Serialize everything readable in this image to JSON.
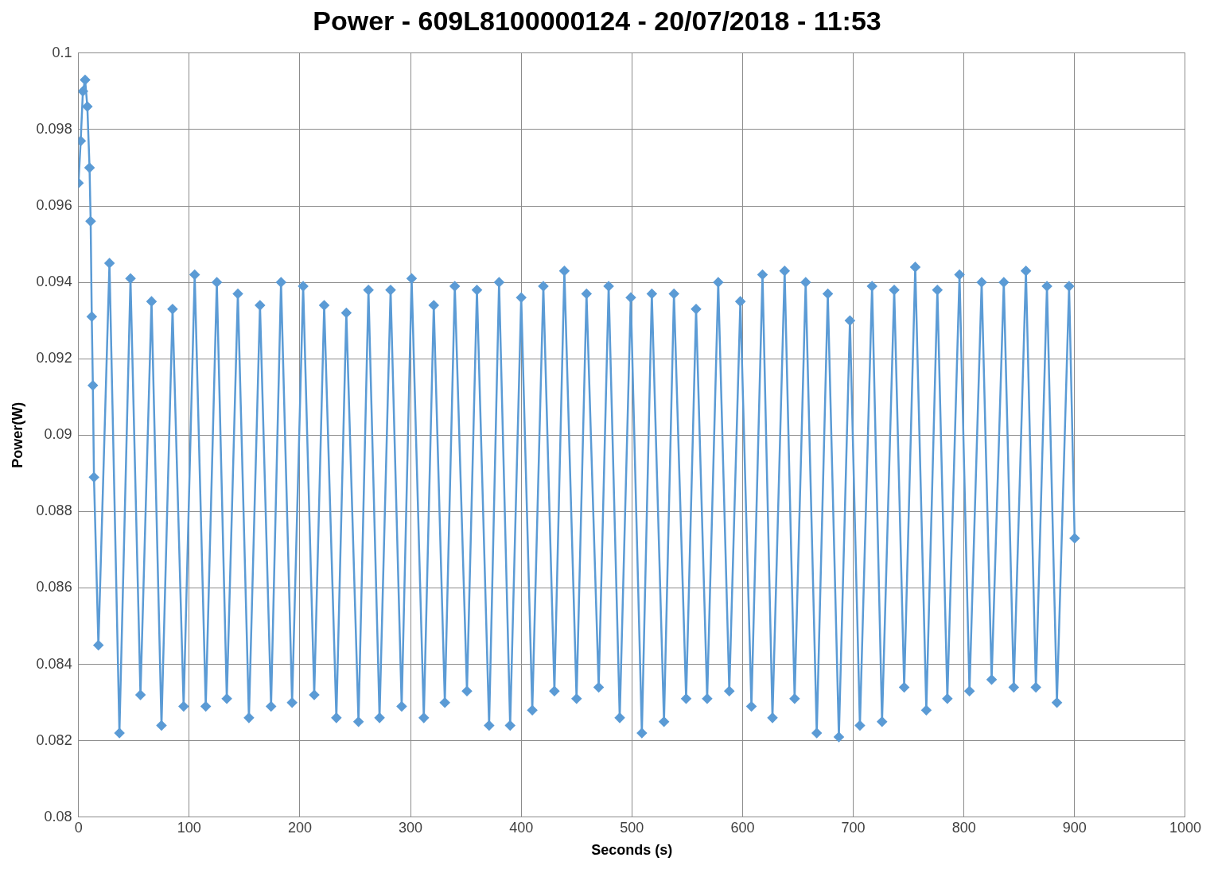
{
  "chart_data": {
    "type": "line",
    "title": "Power - 609L8100000124 - 20/07/2018 - 11:53",
    "xlabel": "Seconds (s)",
    "ylabel": "Power(W)",
    "x": [
      0,
      2,
      4,
      6,
      8,
      10,
      11,
      12,
      13,
      14,
      18,
      28,
      37,
      47,
      56,
      66,
      75,
      85,
      95,
      105,
      115,
      125,
      134,
      144,
      154,
      164,
      174,
      183,
      193,
      203,
      213,
      222,
      233,
      242,
      253,
      262,
      272,
      282,
      292,
      301,
      312,
      321,
      331,
      340,
      351,
      360,
      371,
      380,
      390,
      400,
      410,
      420,
      430,
      439,
      450,
      459,
      470,
      479,
      489,
      499,
      509,
      518,
      529,
      538,
      549,
      558,
      568,
      578,
      588,
      598,
      608,
      618,
      627,
      638,
      647,
      657,
      667,
      677,
      687,
      697,
      706,
      717,
      726,
      737,
      746,
      756,
      766,
      776,
      785,
      796,
      805,
      816,
      825,
      836,
      845,
      856,
      865,
      875,
      884,
      895,
      900
    ],
    "series": [
      {
        "color": "#5b9bd5",
        "values": [
          0.0966,
          0.0977,
          0.099,
          0.0993,
          0.0986,
          0.097,
          0.0956,
          0.0931,
          0.0913,
          0.0889,
          0.0845,
          0.0945,
          0.0822,
          0.0941,
          0.0832,
          0.0935,
          0.0824,
          0.0933,
          0.0829,
          0.0942,
          0.0829,
          0.094,
          0.0831,
          0.0937,
          0.0826,
          0.0934,
          0.0829,
          0.094,
          0.083,
          0.0939,
          0.0832,
          0.0934,
          0.0826,
          0.0932,
          0.0825,
          0.0938,
          0.0826,
          0.0938,
          0.0829,
          0.0941,
          0.0826,
          0.0934,
          0.083,
          0.0939,
          0.0833,
          0.0938,
          0.0824,
          0.094,
          0.0824,
          0.0936,
          0.0828,
          0.0939,
          0.0833,
          0.0943,
          0.0831,
          0.0937,
          0.0834,
          0.0939,
          0.0826,
          0.0936,
          0.0822,
          0.0937,
          0.0825,
          0.0937,
          0.0831,
          0.0933,
          0.0831,
          0.094,
          0.0833,
          0.0935,
          0.0829,
          0.0942,
          0.0826,
          0.0943,
          0.0831,
          0.094,
          0.0822,
          0.0937,
          0.0821,
          0.093,
          0.0824,
          0.0939,
          0.0825,
          0.0938,
          0.0834,
          0.0944,
          0.0828,
          0.0938,
          0.0831,
          0.0942,
          0.0833,
          0.094,
          0.0836,
          0.094,
          0.0834,
          0.0943,
          0.0834,
          0.0939,
          0.083,
          0.0939,
          0.0873
        ]
      }
    ],
    "xlim": [
      0,
      1000
    ],
    "xticks": [
      0,
      100,
      200,
      300,
      400,
      500,
      600,
      700,
      800,
      900,
      1000
    ],
    "ylim": [
      0.08,
      0.1
    ],
    "yticks": [
      0.08,
      0.082,
      0.084,
      0.086,
      0.088,
      0.09,
      0.092,
      0.094,
      0.096,
      0.098,
      0.1
    ],
    "grid": true,
    "legend": false,
    "marker": "diamond",
    "line_style": "solid"
  }
}
